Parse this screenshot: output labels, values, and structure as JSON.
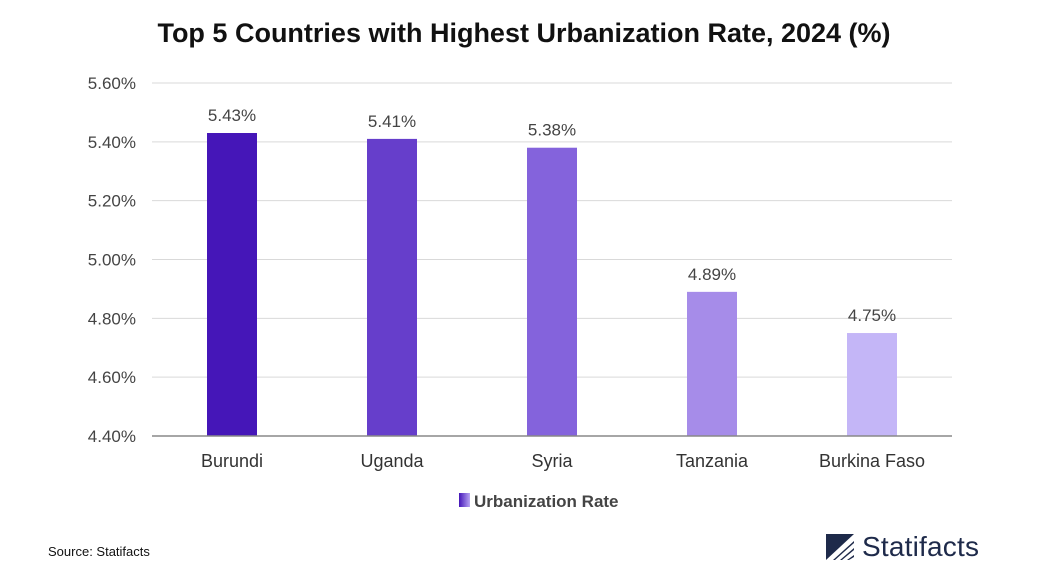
{
  "chart_data": {
    "type": "bar",
    "title": "Top 5 Countries with Highest Urbanization Rate, 2024 (%)",
    "categories": [
      "Burundi",
      "Uganda",
      "Syria",
      "Tanzania",
      "Burkina Faso"
    ],
    "series": [
      {
        "name": "Urbanization Rate",
        "values": [
          5.43,
          5.41,
          5.38,
          4.89,
          4.75
        ]
      }
    ],
    "data_labels": [
      "5.43%",
      "5.41%",
      "5.38%",
      "4.89%",
      "4.75%"
    ],
    "ylim": [
      4.4,
      5.6
    ],
    "yticks": [
      4.4,
      4.6,
      4.8,
      5.0,
      5.2,
      5.4,
      5.6
    ],
    "ytick_labels": [
      "4.40%",
      "4.60%",
      "4.80%",
      "5.00%",
      "5.20%",
      "5.40%",
      "5.60%"
    ],
    "xlabel": "",
    "ylabel": "",
    "grid": true,
    "legend_position": "bottom-center",
    "bar_colors": [
      "#4516b8",
      "#663ecb",
      "#8463dc",
      "#a68ce9",
      "#c4b6f7"
    ]
  },
  "footer": {
    "source": "Source: Statifacts",
    "brand": "Statifacts",
    "brand_icon": "statifacts-logo-icon"
  },
  "colors": {
    "grid": "#d9d9d9",
    "axis": "#888888",
    "brand": "#1e2a4a"
  }
}
